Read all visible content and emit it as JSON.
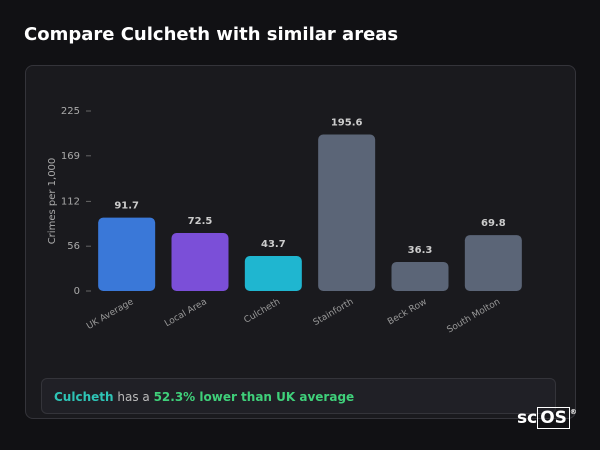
{
  "title": "Compare Culcheth with similar areas",
  "chart_data": {
    "type": "bar",
    "y_label": "Crimes per 1,000",
    "categories": [
      "UK Average",
      "Local Area",
      "Culcheth",
      "Stainforth",
      "Beck Row",
      "South Molton"
    ],
    "values": [
      91.7,
      72.5,
      43.7,
      195.6,
      36.3,
      69.8
    ],
    "colors": [
      "#3a78d8",
      "#7b4fd8",
      "#1fb6d0",
      "#5b6577",
      "#5b6577",
      "#5b6577"
    ],
    "ylim": [
      0,
      225
    ],
    "yticks": [
      0,
      56,
      112,
      169,
      225
    ],
    "grid": false
  },
  "summary": {
    "place": "Culcheth",
    "text": " has a ",
    "highlight": "52.3% lower than UK average"
  },
  "logo": {
    "text": "sc",
    "boxed": "OS",
    "mark": "®"
  }
}
